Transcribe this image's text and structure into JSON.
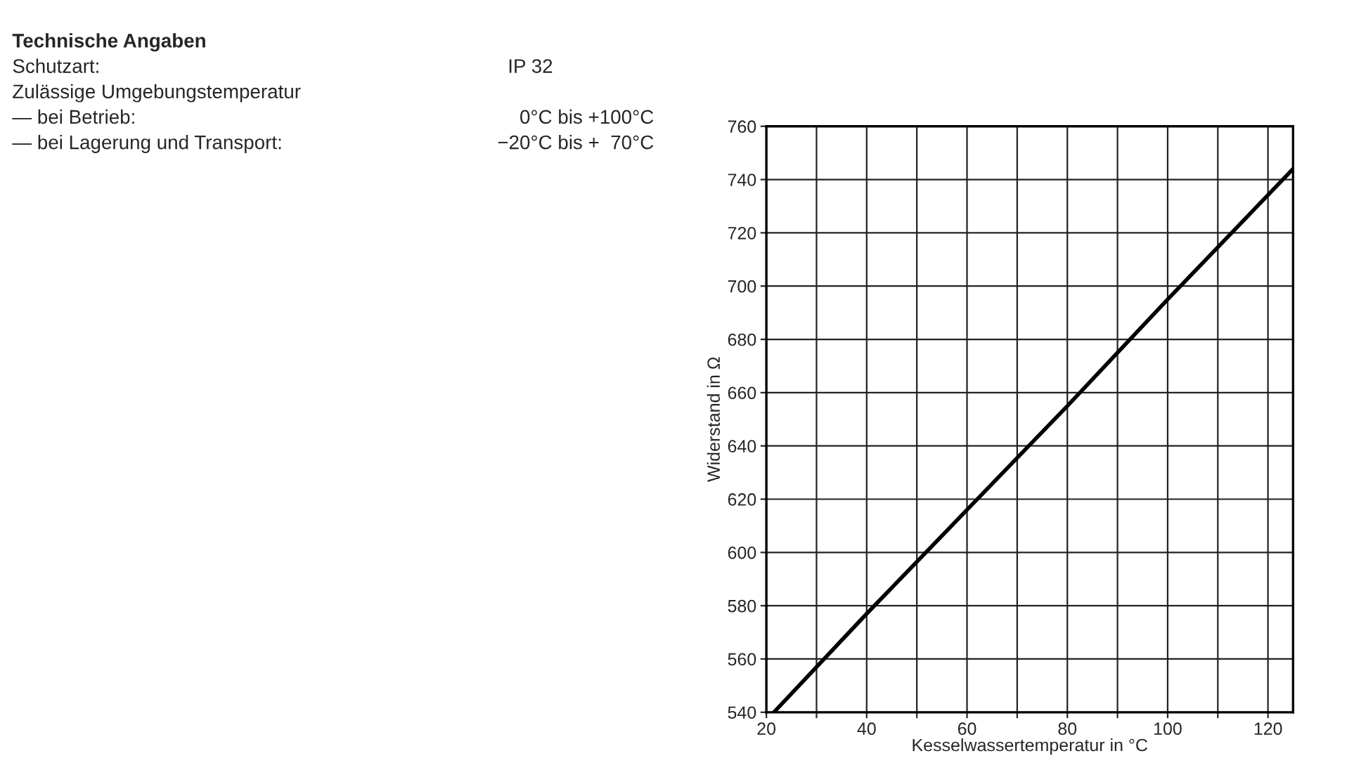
{
  "chart_data": {
    "type": "line",
    "annotations": [
      "Technische Angaben",
      "Schutzart:",
      "IP 32",
      "Zulässige Umgebungstemperatur",
      "— bei Betrieb:",
      "0°C bis +100°C",
      "— bei Lagerung und Transport:",
      "−20°C bis +  70°C"
    ],
    "xlabel": "Kesselwassertemperatur in °C",
    "ylabel": "Widerstand in Ω",
    "series": [
      {
        "color": "#000000",
        "x": [
          21.5,
          40,
          60,
          80,
          100,
          125
        ],
        "values": [
          540,
          577,
          616,
          655,
          695,
          744
        ]
      }
    ],
    "xlim": [
      20,
      125
    ],
    "ylim": [
      540,
      760
    ],
    "xticks": [
      20,
      {
        "value": 30,
        "label": null
      },
      40,
      {
        "value": 50,
        "label": null
      },
      60,
      {
        "value": 70,
        "label": null
      },
      80,
      {
        "value": 90,
        "label": null
      },
      100,
      {
        "value": 110,
        "label": null
      },
      120
    ],
    "yticks": [
      540,
      560,
      580,
      600,
      620,
      640,
      660,
      680,
      700,
      720,
      740,
      760
    ],
    "grid": true,
    "marker": "none",
    "line_style": "solid"
  }
}
